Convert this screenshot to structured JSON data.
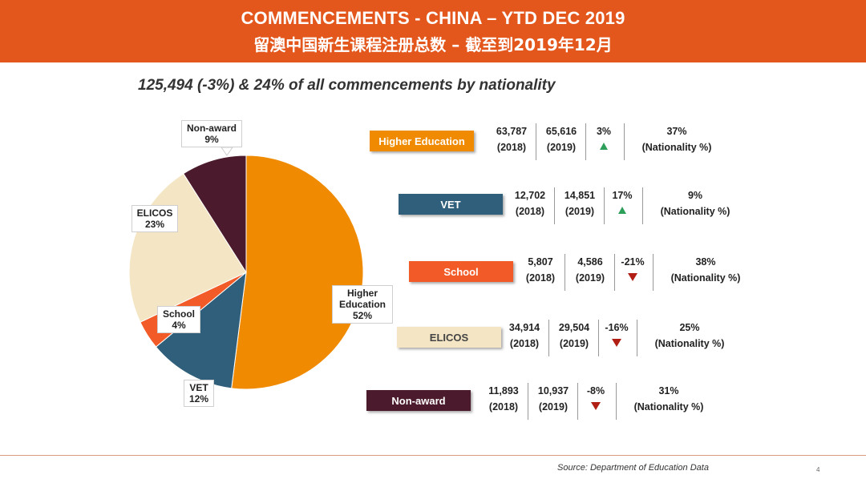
{
  "header": {
    "title_en": "COMMENCEMENTS - CHINA – YTD DEC 2019",
    "title_cn": "留澳中国新生课程注册总数 – 截至到2019年12月"
  },
  "subtitle": "125,494 (-3%) & 24% of all commencements by nationality",
  "chart_data": {
    "type": "pie",
    "title": "",
    "slices": [
      {
        "name": "Higher Education",
        "label_lines": [
          "Higher",
          "Education",
          "52%"
        ],
        "value": 52,
        "color": "#f08a00"
      },
      {
        "name": "VET",
        "label_lines": [
          "VET",
          "12%"
        ],
        "value": 12,
        "color": "#2f5f7a"
      },
      {
        "name": "School",
        "label_lines": [
          "School",
          "4%"
        ],
        "value": 4,
        "color": "#f25a27"
      },
      {
        "name": "ELICOS",
        "label_lines": [
          "ELICOS",
          "23%"
        ],
        "value": 23,
        "color": "#f4e6c4"
      },
      {
        "name": "Non-award",
        "label_lines": [
          "Non-award",
          "9%"
        ],
        "value": 9,
        "color": "#4b1a2c"
      }
    ]
  },
  "table": {
    "rows": [
      {
        "label": "Higher Education",
        "bg": "#f08a00",
        "fg": "#ffffff",
        "v2018": "63,787",
        "y2018": "(2018)",
        "v2019": "65,616",
        "y2019": "(2019)",
        "change": "3%",
        "direction": "up",
        "nat_pct": "37%",
        "nat_label": "(Nationality %)"
      },
      {
        "label": "VET",
        "bg": "#2f5f7a",
        "fg": "#ffffff",
        "v2018": "12,702",
        "y2018": "(2018)",
        "v2019": "14,851",
        "y2019": "(2019)",
        "change": "17%",
        "direction": "up",
        "nat_pct": "9%",
        "nat_label": "(Nationality %)"
      },
      {
        "label": "School",
        "bg": "#f25a27",
        "fg": "#ffffff",
        "v2018": "5,807",
        "y2018": "(2018)",
        "v2019": "4,586",
        "y2019": "(2019)",
        "change": "-21%",
        "direction": "down",
        "nat_pct": "38%",
        "nat_label": "(Nationality %)"
      },
      {
        "label": "ELICOS",
        "bg": "#f4e6c4",
        "fg": "#444444",
        "v2018": "34,914",
        "y2018": "(2018)",
        "v2019": "29,504",
        "y2019": "(2019)",
        "change": "-16%",
        "direction": "down",
        "nat_pct": "25%",
        "nat_label": "(Nationality %)"
      },
      {
        "label": "Non-award",
        "bg": "#4b1a2c",
        "fg": "#ffffff",
        "v2018": "11,893",
        "y2018": "(2018)",
        "v2019": "10,937",
        "y2019": "(2019)",
        "change": "-8%",
        "direction": "down",
        "nat_pct": "31%",
        "nat_label": "(Nationality %)"
      }
    ]
  },
  "footer": {
    "source": "Source: Department of Education Data",
    "page_number": "4"
  }
}
